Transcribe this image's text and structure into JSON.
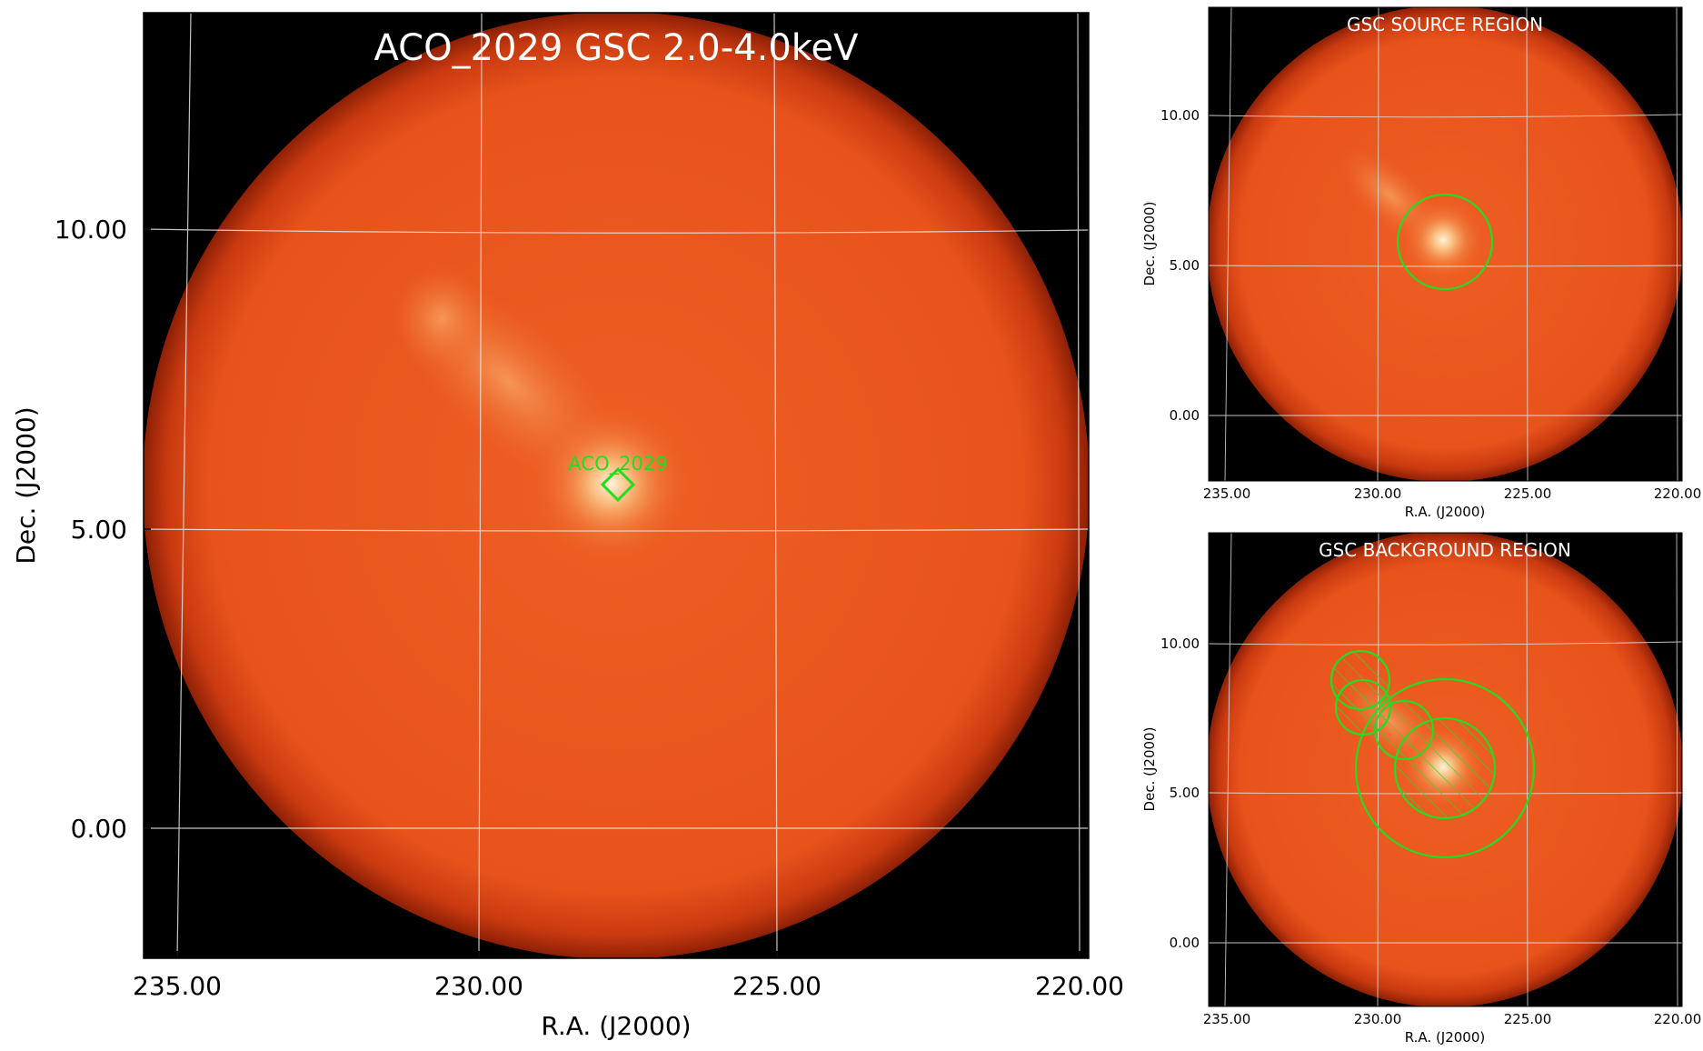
{
  "colors": {
    "background": "#000000",
    "disk": "#e8541c",
    "grid": "#e6e6e6",
    "region": "#22dd22"
  },
  "main": {
    "title": "ACO_2029 GSC 2.0-4.0keV",
    "xlabel": "R.A. (J2000)",
    "ylabel": "Dec. (J2000)",
    "xticks": [
      "235.00",
      "230.00",
      "225.00",
      "220.00"
    ],
    "yticks": [
      "10.00",
      "5.00",
      "0.00"
    ],
    "marker_label": "ACO_2029",
    "marker_icon": "diamond-marker-icon"
  },
  "source_panel": {
    "title": "GSC SOURCE REGION",
    "xlabel": "R.A. (J2000)",
    "ylabel": "Dec. (J2000)",
    "xticks": [
      "235.00",
      "230.00",
      "225.00",
      "220.00"
    ],
    "yticks": [
      "10.00",
      "5.00",
      "0.00"
    ]
  },
  "background_panel": {
    "title": "GSC BACKGROUND REGION",
    "xlabel": "R.A. (J2000)",
    "ylabel": "Dec. (J2000)",
    "xticks": [
      "235.00",
      "230.00",
      "225.00",
      "220.00"
    ],
    "yticks": [
      "10.00",
      "5.00",
      "0.00"
    ]
  }
}
